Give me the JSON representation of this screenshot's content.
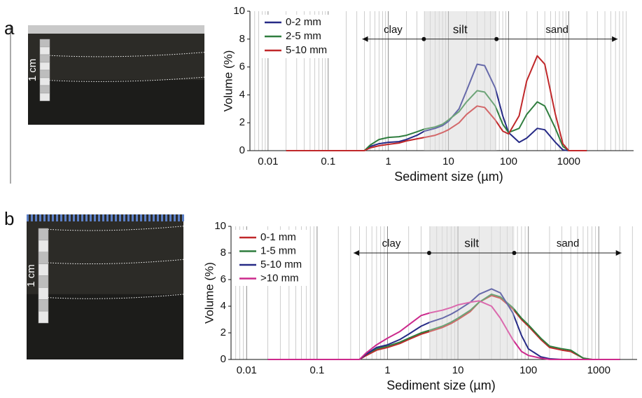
{
  "chart_data": [
    {
      "type": "line",
      "panel": "a",
      "scale_label": "1 cm",
      "ylabel": "Volume (%)",
      "xlabel": "Sediment size (µm)",
      "xscale": "log",
      "xlim": [
        0.005,
        12000
      ],
      "xticks": [
        0.01,
        0.1,
        1,
        10,
        100,
        1000
      ],
      "ylim": [
        0,
        10
      ],
      "yticks": [
        0,
        2,
        4,
        6,
        8,
        10
      ],
      "grid": true,
      "legend": "upper left",
      "size_classes": {
        "labels": [
          "clay",
          "silt",
          "sand"
        ],
        "bounds": [
          3.9,
          63
        ],
        "arrow_y": 8,
        "arrow_range": [
          0.37,
          6500
        ]
      },
      "x": [
        0.02,
        0.3,
        0.4,
        0.5,
        0.7,
        1,
        1.5,
        2,
        3,
        4,
        6,
        8,
        10,
        15,
        20,
        30,
        40,
        60,
        80,
        100,
        150,
        200,
        300,
        400,
        600,
        800,
        1000,
        2000
      ],
      "series": [
        {
          "name": "0-2 mm",
          "color": "#262a86",
          "values": [
            0,
            0,
            0,
            0.3,
            0.5,
            0.6,
            0.65,
            0.8,
            1.1,
            1.4,
            1.6,
            1.8,
            2.1,
            3,
            4.3,
            6.2,
            6.1,
            4.5,
            2.5,
            1.3,
            0.6,
            0.9,
            1.6,
            1.5,
            0.6,
            0.05,
            0,
            0
          ]
        },
        {
          "name": "2-5 mm",
          "color": "#2f7d3e",
          "values": [
            0,
            0,
            0,
            0.4,
            0.8,
            0.95,
            1.0,
            1.1,
            1.35,
            1.55,
            1.7,
            1.9,
            2.2,
            2.8,
            3.5,
            4.3,
            4.2,
            3.2,
            1.9,
            1.3,
            1.6,
            2.6,
            3.5,
            3.2,
            1.6,
            0.3,
            0,
            0
          ]
        },
        {
          "name": "5-10 mm",
          "color": "#c0282a",
          "values": [
            0,
            0,
            0,
            0.2,
            0.35,
            0.45,
            0.55,
            0.7,
            0.85,
            0.95,
            1.1,
            1.3,
            1.5,
            2,
            2.6,
            3.2,
            3.1,
            2.2,
            1.4,
            1.2,
            2.5,
            5,
            6.8,
            6.2,
            2.6,
            0.5,
            0,
            0
          ]
        }
      ]
    },
    {
      "type": "line",
      "panel": "b",
      "scale_label": "1 cm",
      "ylabel": "Volume (%)",
      "xlabel": "Sediment size (µm)",
      "xscale": "log",
      "xlim": [
        0.006,
        3500
      ],
      "xticks": [
        0.01,
        0.1,
        1,
        10,
        100,
        1000
      ],
      "ylim": [
        0,
        10
      ],
      "yticks": [
        0,
        2,
        4,
        6,
        8,
        10
      ],
      "grid": true,
      "legend": "upper left",
      "size_classes": {
        "labels": [
          "clay",
          "silt",
          "sand"
        ],
        "bounds": [
          3.9,
          63
        ],
        "arrow_y": 8,
        "arrow_range": [
          0.33,
          2100
        ]
      },
      "x": [
        0.02,
        0.3,
        0.4,
        0.5,
        0.7,
        1,
        1.5,
        2,
        3,
        4,
        6,
        8,
        10,
        15,
        20,
        30,
        40,
        60,
        80,
        100,
        150,
        200,
        300,
        400,
        600,
        800,
        1000,
        2000
      ],
      "series": [
        {
          "name": "0-1 mm",
          "color": "#c0282a",
          "values": [
            0,
            0,
            0,
            0.3,
            0.7,
            0.9,
            1.2,
            1.5,
            1.9,
            2.1,
            2.4,
            2.7,
            3,
            3.6,
            4.3,
            4.8,
            4.6,
            3.8,
            3,
            2.5,
            1.5,
            0.9,
            0.7,
            0.6,
            0.1,
            0,
            0,
            0
          ]
        },
        {
          "name": "1-5 mm",
          "color": "#2f7d3e",
          "values": [
            0,
            0,
            0,
            0.4,
            0.8,
            1.0,
            1.3,
            1.6,
            2.0,
            2.2,
            2.5,
            2.8,
            3.1,
            3.7,
            4.3,
            4.9,
            4.7,
            3.9,
            3.1,
            2.6,
            1.6,
            1,
            0.8,
            0.7,
            0.1,
            0,
            0,
            0
          ]
        },
        {
          "name": "5-10 mm",
          "color": "#262a86",
          "values": [
            0,
            0,
            0,
            0.4,
            0.9,
            1.1,
            1.5,
            1.9,
            2.5,
            2.8,
            3.1,
            3.4,
            3.7,
            4.3,
            4.9,
            5.3,
            5,
            3.5,
            1.8,
            0.8,
            0.2,
            0.05,
            0,
            0,
            0,
            0,
            0,
            0
          ]
        },
        {
          "name": ">10 mm",
          "color": "#cc2a8c",
          "values": [
            0,
            0,
            0,
            0.5,
            1.1,
            1.6,
            2.1,
            2.6,
            3.3,
            3.5,
            3.7,
            3.9,
            4.1,
            4.3,
            4.4,
            4.0,
            3.1,
            1.5,
            0.6,
            0.3,
            0.1,
            0,
            0,
            0,
            0,
            0,
            0,
            0
          ]
        }
      ]
    }
  ]
}
